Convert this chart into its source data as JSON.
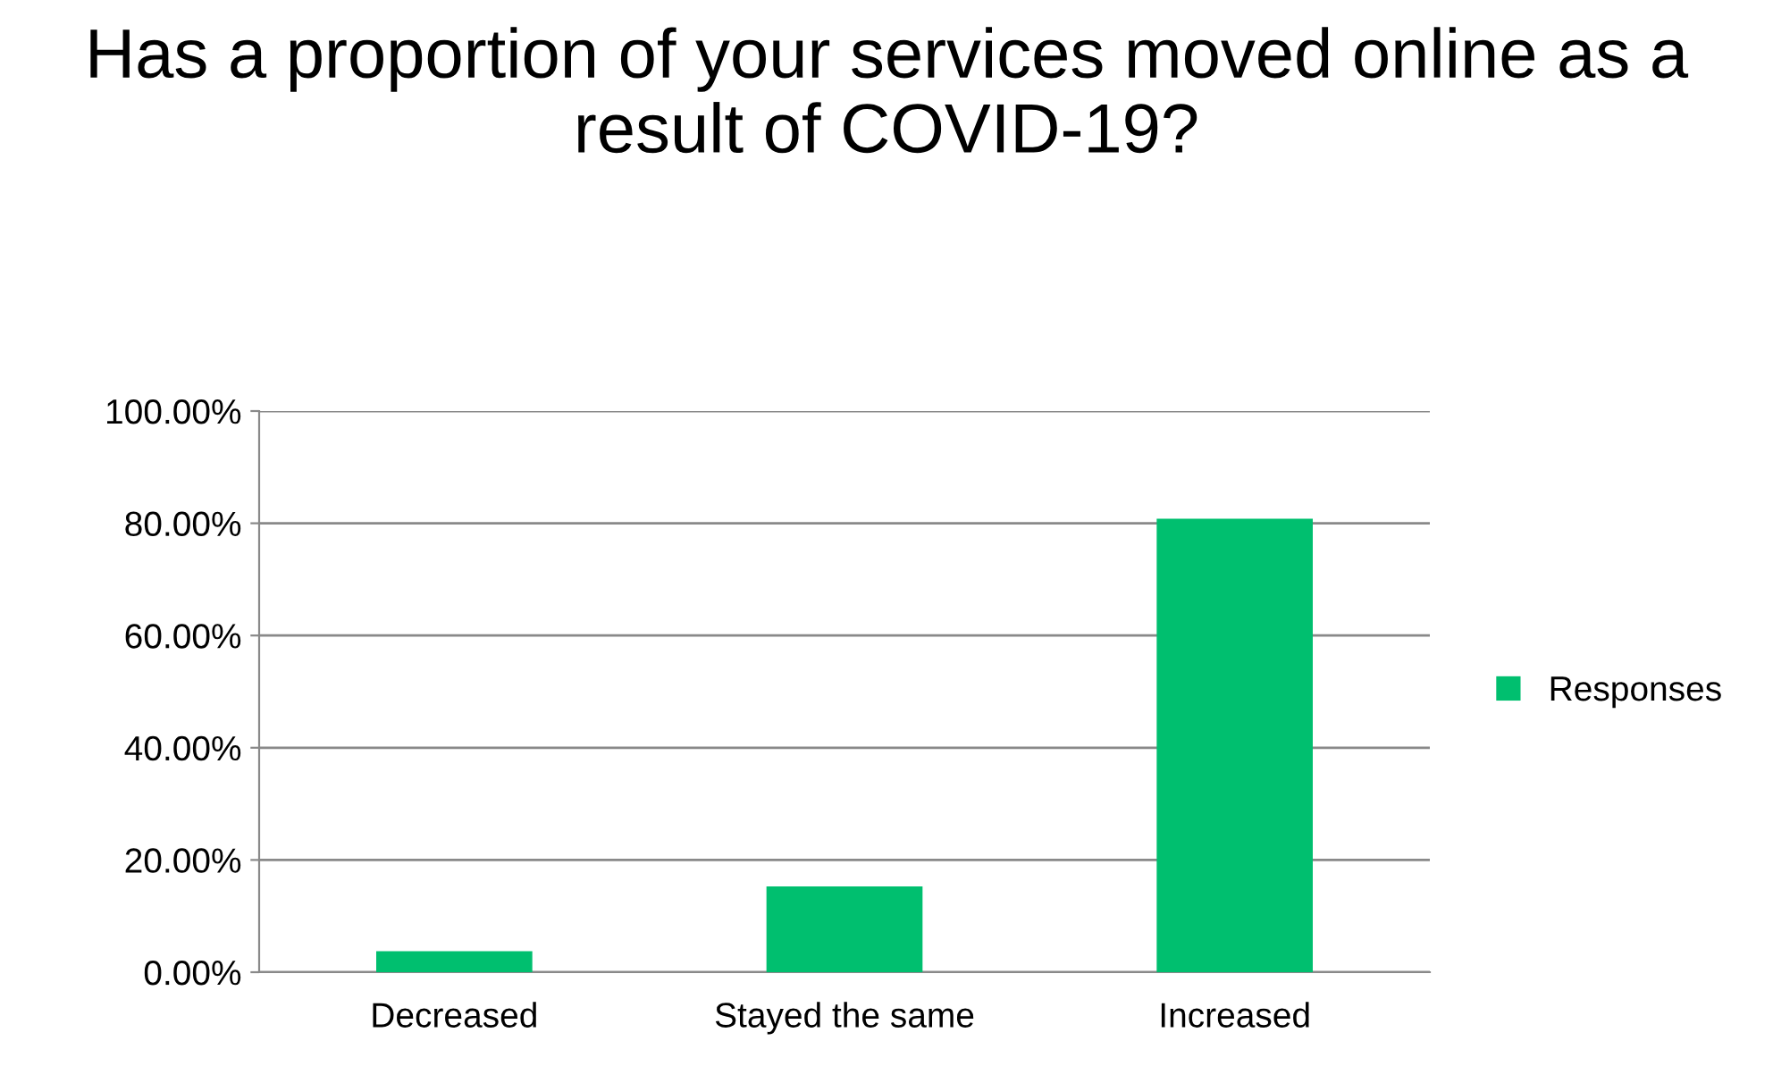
{
  "chart_data": {
    "type": "bar",
    "title": "Has a proportion of your services moved online as a result of COVID-19?",
    "categories": [
      "Decreased",
      "Stayed the same",
      "Increased"
    ],
    "series": [
      {
        "name": "Responses",
        "color": "#00bf6f",
        "values": [
          3.75,
          15.3,
          80.8
        ]
      }
    ],
    "ylim": [
      0,
      100
    ],
    "yticks": [
      {
        "value": 0,
        "label": "0.00%"
      },
      {
        "value": 20,
        "label": "20.00%"
      },
      {
        "value": 40,
        "label": "40.00%"
      },
      {
        "value": 60,
        "label": "60.00%"
      },
      {
        "value": 80,
        "label": "80.00%"
      },
      {
        "value": 100,
        "label": "100.00%"
      }
    ],
    "grid": "y",
    "legend": "right"
  }
}
